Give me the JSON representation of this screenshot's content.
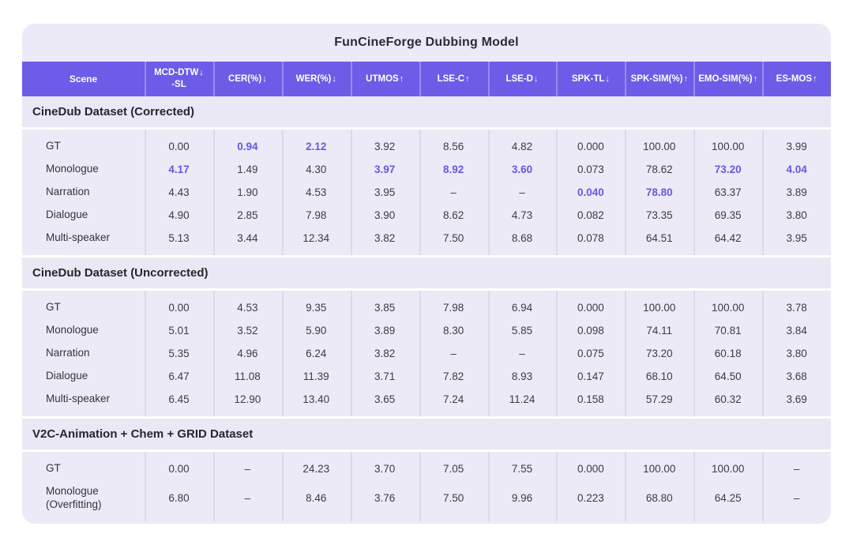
{
  "chart_data": {
    "type": "table",
    "title": "FunCineForge Dubbing Model",
    "accent_color": "#6c5ce7",
    "highlight_color": "#6459df",
    "columns": [
      {
        "label": "Scene",
        "arrow": "",
        "sub": ""
      },
      {
        "label": "MCD-DTW",
        "arrow": "↓",
        "sub": "-SL"
      },
      {
        "label": "CER(%)",
        "arrow": "↓",
        "sub": ""
      },
      {
        "label": "WER(%)",
        "arrow": "↓",
        "sub": ""
      },
      {
        "label": "UTMOS",
        "arrow": "↑",
        "sub": ""
      },
      {
        "label": "LSE-C",
        "arrow": "↑",
        "sub": ""
      },
      {
        "label": "LSE-D",
        "arrow": "↓",
        "sub": ""
      },
      {
        "label": "SPK-TL",
        "arrow": "↓",
        "sub": ""
      },
      {
        "label": "SPK-SIM(%)",
        "arrow": "↑",
        "sub": ""
      },
      {
        "label": "EMO-SIM(%)",
        "arrow": "↑",
        "sub": ""
      },
      {
        "label": "ES-MOS",
        "arrow": "↑",
        "sub": ""
      }
    ],
    "sections": [
      {
        "heading": "CineDub Dataset (Corrected)",
        "rows": [
          {
            "scene": "GT",
            "cells": [
              {
                "v": "0.00"
              },
              {
                "v": "0.94",
                "hl": true
              },
              {
                "v": "2.12",
                "hl": true
              },
              {
                "v": "3.92"
              },
              {
                "v": "8.56"
              },
              {
                "v": "4.82"
              },
              {
                "v": "0.000"
              },
              {
                "v": "100.00"
              },
              {
                "v": "100.00"
              },
              {
                "v": "3.99"
              }
            ]
          },
          {
            "scene": "Monologue",
            "cells": [
              {
                "v": "4.17",
                "hl": true
              },
              {
                "v": "1.49"
              },
              {
                "v": "4.30"
              },
              {
                "v": "3.97",
                "hl": true
              },
              {
                "v": "8.92",
                "hl": true
              },
              {
                "v": "3.60",
                "hl": true
              },
              {
                "v": "0.073"
              },
              {
                "v": "78.62"
              },
              {
                "v": "73.20",
                "hl": true
              },
              {
                "v": "4.04",
                "hl": true
              }
            ]
          },
          {
            "scene": "Narration",
            "cells": [
              {
                "v": "4.43"
              },
              {
                "v": "1.90"
              },
              {
                "v": "4.53"
              },
              {
                "v": "3.95"
              },
              {
                "v": "–"
              },
              {
                "v": "–"
              },
              {
                "v": "0.040",
                "hl": true
              },
              {
                "v": "78.80",
                "hl": true
              },
              {
                "v": "63.37"
              },
              {
                "v": "3.89"
              }
            ]
          },
          {
            "scene": "Dialogue",
            "cells": [
              {
                "v": "4.90"
              },
              {
                "v": "2.85"
              },
              {
                "v": "7.98"
              },
              {
                "v": "3.90"
              },
              {
                "v": "8.62"
              },
              {
                "v": "4.73"
              },
              {
                "v": "0.082"
              },
              {
                "v": "73.35"
              },
              {
                "v": "69.35"
              },
              {
                "v": "3.80"
              }
            ]
          },
          {
            "scene": "Multi-speaker",
            "cells": [
              {
                "v": "5.13"
              },
              {
                "v": "3.44"
              },
              {
                "v": "12.34"
              },
              {
                "v": "3.82"
              },
              {
                "v": "7.50"
              },
              {
                "v": "8.68"
              },
              {
                "v": "0.078"
              },
              {
                "v": "64.51"
              },
              {
                "v": "64.42"
              },
              {
                "v": "3.95"
              }
            ]
          }
        ]
      },
      {
        "heading": "CineDub Dataset (Uncorrected)",
        "rows": [
          {
            "scene": "GT",
            "cells": [
              {
                "v": "0.00"
              },
              {
                "v": "4.53"
              },
              {
                "v": "9.35"
              },
              {
                "v": "3.85"
              },
              {
                "v": "7.98"
              },
              {
                "v": "6.94"
              },
              {
                "v": "0.000"
              },
              {
                "v": "100.00"
              },
              {
                "v": "100.00"
              },
              {
                "v": "3.78"
              }
            ]
          },
          {
            "scene": "Monologue",
            "cells": [
              {
                "v": "5.01"
              },
              {
                "v": "3.52"
              },
              {
                "v": "5.90"
              },
              {
                "v": "3.89"
              },
              {
                "v": "8.30"
              },
              {
                "v": "5.85"
              },
              {
                "v": "0.098"
              },
              {
                "v": "74.11"
              },
              {
                "v": "70.81"
              },
              {
                "v": "3.84"
              }
            ]
          },
          {
            "scene": "Narration",
            "cells": [
              {
                "v": "5.35"
              },
              {
                "v": "4.96"
              },
              {
                "v": "6.24"
              },
              {
                "v": "3.82"
              },
              {
                "v": "–"
              },
              {
                "v": "–"
              },
              {
                "v": "0.075"
              },
              {
                "v": "73.20"
              },
              {
                "v": "60.18"
              },
              {
                "v": "3.80"
              }
            ]
          },
          {
            "scene": "Dialogue",
            "cells": [
              {
                "v": "6.47"
              },
              {
                "v": "11.08"
              },
              {
                "v": "11.39"
              },
              {
                "v": "3.71"
              },
              {
                "v": "7.82"
              },
              {
                "v": "8.93"
              },
              {
                "v": "0.147"
              },
              {
                "v": "68.10"
              },
              {
                "v": "64.50"
              },
              {
                "v": "3.68"
              }
            ]
          },
          {
            "scene": "Multi-speaker",
            "cells": [
              {
                "v": "6.45"
              },
              {
                "v": "12.90"
              },
              {
                "v": "13.40"
              },
              {
                "v": "3.65"
              },
              {
                "v": "7.24"
              },
              {
                "v": "11.24"
              },
              {
                "v": "0.158"
              },
              {
                "v": "57.29"
              },
              {
                "v": "60.32"
              },
              {
                "v": "3.69"
              }
            ]
          }
        ]
      },
      {
        "heading": "V2C-Animation + Chem + GRID Dataset",
        "rows": [
          {
            "scene": "GT",
            "cells": [
              {
                "v": "0.00"
              },
              {
                "v": "–"
              },
              {
                "v": "24.23"
              },
              {
                "v": "3.70"
              },
              {
                "v": "7.05"
              },
              {
                "v": "7.55"
              },
              {
                "v": "0.000"
              },
              {
                "v": "100.00"
              },
              {
                "v": "100.00"
              },
              {
                "v": "–"
              }
            ]
          },
          {
            "scene": "Monologue (Overfitting)",
            "cells": [
              {
                "v": "6.80"
              },
              {
                "v": "–"
              },
              {
                "v": "8.46"
              },
              {
                "v": "3.76"
              },
              {
                "v": "7.50"
              },
              {
                "v": "9.96"
              },
              {
                "v": "0.223"
              },
              {
                "v": "68.80"
              },
              {
                "v": "64.25"
              },
              {
                "v": "–"
              }
            ]
          }
        ]
      }
    ]
  }
}
